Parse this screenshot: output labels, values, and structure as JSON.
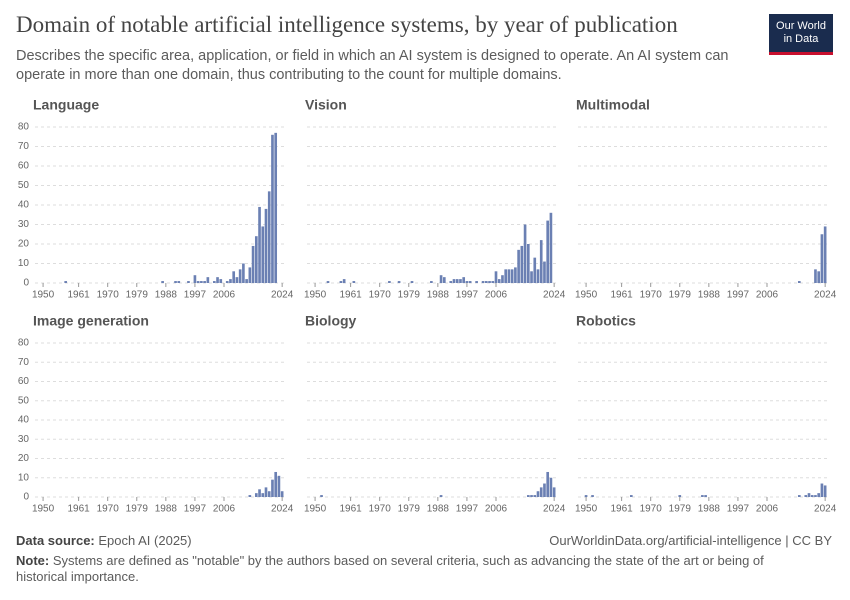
{
  "title": "Domain of notable artificial intelligence systems, by year of publication",
  "subtitle": "Describes the specific area, application, or field in which an AI system is designed to operate. An AI system can operate in more than one domain, thus contributing to the count for multiple domains.",
  "logo": [
    "Our World",
    "in Data"
  ],
  "source_label": "Data source:",
  "source": "Epoch AI (2025)",
  "url": "OurWorldinData.org/artificial-intelligence | CC BY",
  "note_label": "Note:",
  "note": "Systems are defined as \"notable\" by the authors based on several criteria, such as advancing the state of the art or being of historical importance.",
  "chart_data": [
    {
      "type": "bar",
      "title": "Language",
      "color": "#6b80b3",
      "xlim": [
        1947.5,
        2025.5
      ],
      "xticks": [
        1950,
        1961,
        1970,
        1979,
        1988,
        1997,
        2006,
        2024
      ],
      "ylim": [
        0,
        80
      ],
      "yticks": [
        0,
        10,
        20,
        30,
        40,
        50,
        60,
        70,
        80
      ],
      "grid": true,
      "x": [
        1957,
        1987,
        1991,
        1992,
        1995,
        1997,
        1998,
        1999,
        2000,
        2001,
        2003,
        2004,
        2005,
        2007,
        2008,
        2009,
        2010,
        2011,
        2012,
        2013,
        2014,
        2015,
        2016,
        2017,
        2018,
        2019,
        2020,
        2021,
        2022,
        2023,
        2024
      ],
      "values": [
        1,
        1,
        1,
        1,
        1,
        4,
        1,
        1,
        1,
        3,
        1,
        3,
        2,
        1,
        2,
        6,
        3,
        7,
        10,
        2,
        8,
        19,
        24,
        39,
        29,
        38,
        47,
        76,
        77,
        0,
        0
      ]
    },
    {
      "type": "bar",
      "title": "Vision",
      "color": "#6b80b3",
      "xlim": [
        1947.5,
        2025.5
      ],
      "xticks": [
        1950,
        1961,
        1970,
        1979,
        1988,
        1997,
        2006,
        2024
      ],
      "ylim": [
        0,
        80
      ],
      "yticks": [
        0,
        10,
        20,
        30,
        40,
        50,
        60,
        70,
        80
      ],
      "grid": true,
      "x": [
        1954,
        1958,
        1959,
        1962,
        1973,
        1976,
        1980,
        1986,
        1989,
        1990,
        1992,
        1993,
        1994,
        1995,
        1996,
        1997,
        1998,
        2000,
        2002,
        2003,
        2004,
        2005,
        2006,
        2007,
        2008,
        2009,
        2010,
        2011,
        2012,
        2013,
        2014,
        2015,
        2016,
        2017,
        2018,
        2019,
        2020,
        2021,
        2022,
        2023,
        2024
      ],
      "values": [
        1,
        1,
        2,
        1,
        1,
        1,
        1,
        1,
        4,
        3,
        1,
        2,
        2,
        2,
        3,
        1,
        1,
        1,
        1,
        1,
        1,
        1,
        6,
        2,
        4,
        7,
        7,
        7,
        8,
        17,
        19,
        30,
        20,
        6,
        13,
        7,
        22,
        11,
        32,
        36,
        0
      ]
    },
    {
      "type": "bar",
      "title": "Multimodal",
      "color": "#6b80b3",
      "xlim": [
        1947.5,
        2025.5
      ],
      "xticks": [
        1950,
        1961,
        1970,
        1979,
        1988,
        1997,
        2006,
        2024
      ],
      "ylim": [
        0,
        80
      ],
      "yticks": [
        0,
        10,
        20,
        30,
        40,
        50,
        60,
        70,
        80
      ],
      "grid": true,
      "x": [
        2016,
        2021,
        2022,
        2023,
        2024
      ],
      "values": [
        1,
        7,
        6,
        25,
        29
      ]
    },
    {
      "type": "bar",
      "title": "Image generation",
      "color": "#6b80b3",
      "xlim": [
        1947.5,
        2025.5
      ],
      "xticks": [
        1950,
        1961,
        1970,
        1979,
        1988,
        1997,
        2006,
        2024
      ],
      "ylim": [
        0,
        80
      ],
      "yticks": [
        0,
        10,
        20,
        30,
        40,
        50,
        60,
        70,
        80
      ],
      "grid": true,
      "x": [
        2014,
        2016,
        2017,
        2018,
        2019,
        2020,
        2021,
        2022,
        2023,
        2024
      ],
      "values": [
        1,
        2,
        4,
        2,
        5,
        3,
        9,
        13,
        11,
        3
      ]
    },
    {
      "type": "bar",
      "title": "Biology",
      "color": "#6b80b3",
      "xlim": [
        1947.5,
        2025.5
      ],
      "xticks": [
        1950,
        1961,
        1970,
        1979,
        1988,
        1997,
        2006,
        2024
      ],
      "ylim": [
        0,
        80
      ],
      "yticks": [
        0,
        10,
        20,
        30,
        40,
        50,
        60,
        70,
        80
      ],
      "grid": true,
      "x": [
        1952,
        1989,
        2016,
        2017,
        2018,
        2019,
        2020,
        2021,
        2022,
        2023,
        2024
      ],
      "values": [
        1,
        1,
        1,
        1,
        1,
        3,
        5,
        7,
        13,
        10,
        5
      ]
    },
    {
      "type": "bar",
      "title": "Robotics",
      "color": "#6b80b3",
      "xlim": [
        1947.5,
        2025.5
      ],
      "xticks": [
        1950,
        1961,
        1970,
        1979,
        1988,
        1997,
        2006,
        2024
      ],
      "ylim": [
        0,
        80
      ],
      "yticks": [
        0,
        10,
        20,
        30,
        40,
        50,
        60,
        70,
        80
      ],
      "grid": true,
      "x": [
        1950,
        1952,
        1964,
        1979,
        1986,
        1987,
        2016,
        2018,
        2019,
        2020,
        2021,
        2022,
        2023,
        2024
      ],
      "values": [
        1,
        1,
        1,
        1,
        1,
        1,
        1,
        1,
        2,
        1,
        1,
        2,
        7,
        6
      ]
    }
  ]
}
